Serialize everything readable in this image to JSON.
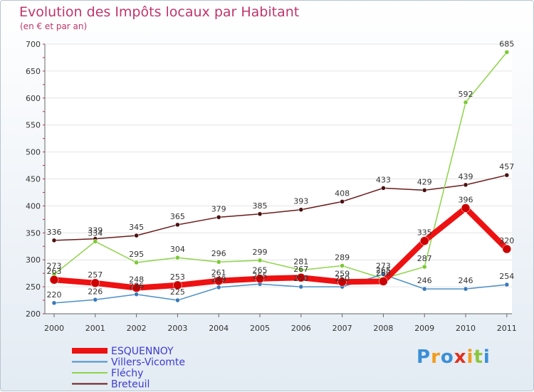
{
  "chart_data": {
    "type": "line",
    "title": "Evolution des Impôts locaux par Habitant",
    "subtitle": "(en € et par an)",
    "categories": [
      "2000",
      "2001",
      "2002",
      "2003",
      "2004",
      "2005",
      "2006",
      "2007",
      "2008",
      "2009",
      "2010",
      "2011"
    ],
    "ylim": [
      200,
      700
    ],
    "yticks": [
      200,
      250,
      300,
      350,
      400,
      450,
      500,
      550,
      600,
      650,
      700
    ],
    "series": [
      {
        "name": "Breteuil",
        "color": "#6b1a1a",
        "values": [
          336,
          339,
          345,
          365,
          379,
          385,
          393,
          408,
          433,
          429,
          439,
          457
        ]
      },
      {
        "name": "Fléchy",
        "color": "#8ed44a",
        "values": [
          273,
          334,
          295,
          304,
          296,
          299,
          281,
          289,
          265,
          287,
          592,
          685
        ]
      },
      {
        "name": "Villers-Vicomte",
        "color": "#4a90c8",
        "values": [
          220,
          226,
          236,
          225,
          249,
          255,
          250,
          250,
          273,
          246,
          246,
          254
        ]
      },
      {
        "name": "ESQUENNOY",
        "color": "#ee1111",
        "values": [
          263,
          257,
          248,
          253,
          261,
          265,
          267,
          259,
          260,
          335,
          396,
          320
        ]
      }
    ],
    "legend_order": [
      "ESQUENNOY",
      "Villers-Vicomte",
      "Fléchy",
      "Breteuil"
    ],
    "legend_position": "bottom-left"
  },
  "logo": {
    "letters": [
      "P",
      "r",
      "o",
      "x",
      "i",
      "t",
      "i"
    ],
    "colors": [
      "#3a8fd6",
      "#f29b1d",
      "#3a8fd6",
      "#e0311f",
      "#f29b1d",
      "#8cc63f",
      "#3a8fd6"
    ]
  }
}
